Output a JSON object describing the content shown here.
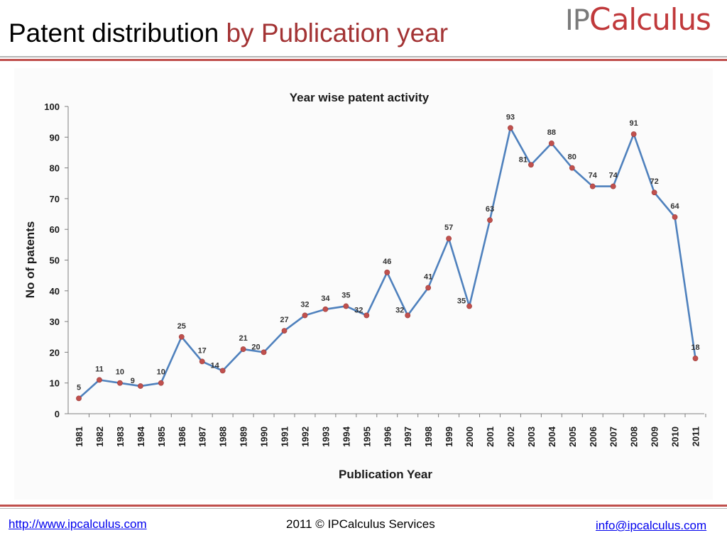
{
  "header": {
    "title_main": "Patent distribution",
    "title_accent": "by Publication year",
    "logo": {
      "part1": "IP",
      "part2": "C",
      "part3": "alculus"
    }
  },
  "chart_data": {
    "type": "line",
    "title": "Year wise patent activity",
    "xlabel": "Publication Year",
    "ylabel": "No of patents",
    "ylim": [
      0,
      100
    ],
    "yticks": [
      0,
      10,
      20,
      30,
      40,
      50,
      60,
      70,
      80,
      90,
      100
    ],
    "grid": false,
    "categories": [
      "1981",
      "1982",
      "1983",
      "1984",
      "1985",
      "1986",
      "1987",
      "1988",
      "1989",
      "1990",
      "1991",
      "1992",
      "1993",
      "1994",
      "1995",
      "1996",
      "1997",
      "1998",
      "1999",
      "2000",
      "2001",
      "2002",
      "2003",
      "2004",
      "2005",
      "2006",
      "2007",
      "2008",
      "2009",
      "2010",
      "2011"
    ],
    "series": [
      {
        "values": [
          5,
          11,
          10,
          9,
          10,
          25,
          17,
          14,
          21,
          20,
          27,
          32,
          34,
          35,
          32,
          46,
          32,
          41,
          57,
          35,
          63,
          93,
          81,
          88,
          80,
          74,
          74,
          91,
          72,
          64,
          18
        ]
      }
    ],
    "colors": {
      "line": "#4f81bd",
      "marker": "#c0504d"
    }
  },
  "footer": {
    "website": "http://www.ipcalculus.com",
    "copyright": "2011 © IPCalculus Services",
    "email": "info@ipcalculus.com"
  }
}
